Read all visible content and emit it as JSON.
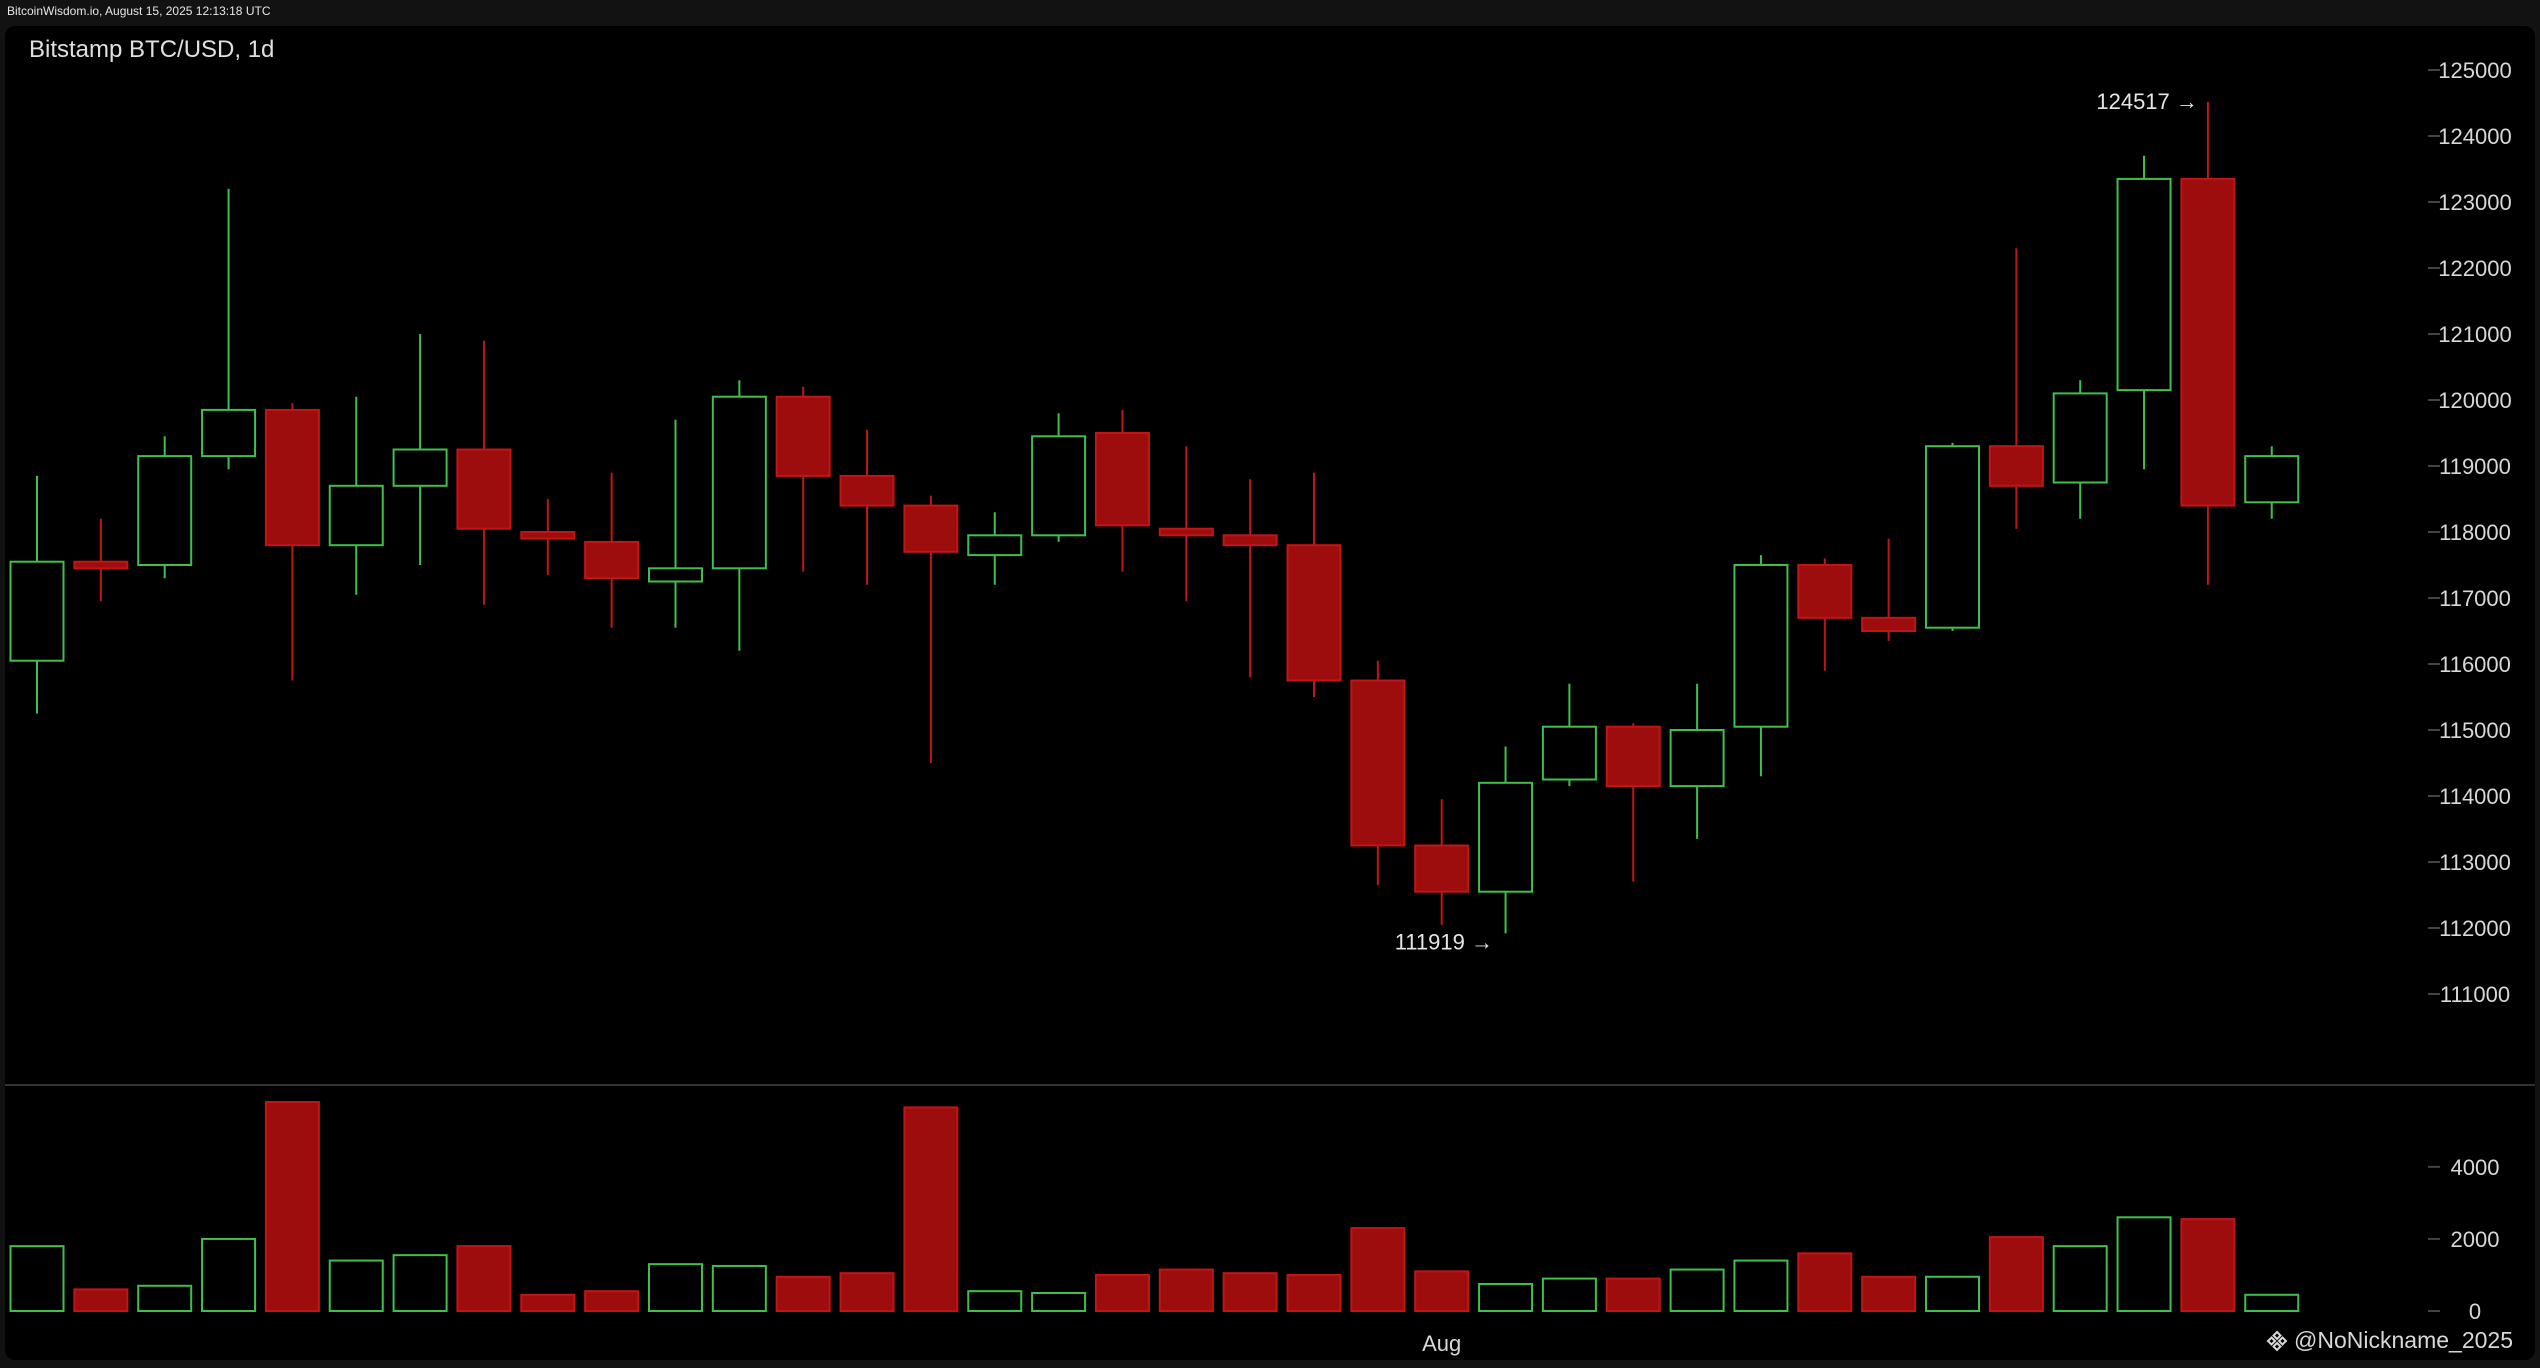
{
  "header": {
    "source_line": "BitcoinWisdom.io, August 15, 2025 12:13:18 UTC",
    "chart_title": "Bitstamp BTC/USD, 1d"
  },
  "watermark": {
    "text": "@NoNickname_2025",
    "icon": "binance-diamond-icon"
  },
  "colors": {
    "background": "#000000",
    "page": "#121212",
    "up": "#3fbf4c",
    "down": "#9e0d0d",
    "down_border": "#c01616",
    "grid_tick": "#444444",
    "separator": "#333333"
  },
  "chart_data": [
    {
      "type": "candlestick",
      "title": "Bitstamp BTC/USD, 1d",
      "ylim": [
        110000,
        125500
      ],
      "yticks": [
        125000,
        124000,
        123000,
        122000,
        121000,
        120000,
        119000,
        118000,
        117000,
        116000,
        115000,
        114000,
        113000,
        112000,
        111000
      ],
      "x_tick_labels": [
        {
          "index": 22,
          "label": "Aug"
        }
      ],
      "annotations": [
        {
          "index": 34,
          "price": 124517,
          "label": "124517 →",
          "position": "left"
        },
        {
          "index": 22,
          "price": 111919,
          "label": "111919 →",
          "position": "below"
        }
      ],
      "candles": [
        {
          "open": 116050,
          "high": 118850,
          "low": 115250,
          "close": 117550
        },
        {
          "open": 117550,
          "high": 118200,
          "low": 116950,
          "close": 117450
        },
        {
          "open": 117500,
          "high": 119450,
          "low": 117300,
          "close": 119150
        },
        {
          "open": 119150,
          "high": 123200,
          "low": 118950,
          "close": 119850
        },
        {
          "open": 119850,
          "high": 119950,
          "low": 115750,
          "close": 117800
        },
        {
          "open": 117800,
          "high": 120050,
          "low": 117050,
          "close": 118700
        },
        {
          "open": 118700,
          "high": 121000,
          "low": 117500,
          "close": 119250
        },
        {
          "open": 119250,
          "high": 120900,
          "low": 116900,
          "close": 118050
        },
        {
          "open": 118000,
          "high": 118500,
          "low": 117350,
          "close": 117900
        },
        {
          "open": 117850,
          "high": 118900,
          "low": 116550,
          "close": 117300
        },
        {
          "open": 117250,
          "high": 119700,
          "low": 116550,
          "close": 117450
        },
        {
          "open": 117450,
          "high": 120300,
          "low": 116200,
          "close": 120050
        },
        {
          "open": 120050,
          "high": 120200,
          "low": 117400,
          "close": 118850
        },
        {
          "open": 118850,
          "high": 119550,
          "low": 117200,
          "close": 118400
        },
        {
          "open": 118400,
          "high": 118550,
          "low": 114500,
          "close": 117700
        },
        {
          "open": 117650,
          "high": 118300,
          "low": 117200,
          "close": 117950
        },
        {
          "open": 117950,
          "high": 119800,
          "low": 117850,
          "close": 119450
        },
        {
          "open": 119500,
          "high": 119850,
          "low": 117400,
          "close": 118100
        },
        {
          "open": 118050,
          "high": 119300,
          "low": 116950,
          "close": 117950
        },
        {
          "open": 117950,
          "high": 118800,
          "low": 115800,
          "close": 117800
        },
        {
          "open": 117800,
          "high": 118900,
          "low": 115500,
          "close": 115750
        },
        {
          "open": 115750,
          "high": 116050,
          "low": 112650,
          "close": 113250
        },
        {
          "open": 113250,
          "high": 113950,
          "low": 112050,
          "close": 112550
        },
        {
          "open": 112550,
          "high": 114750,
          "low": 111919,
          "close": 114200
        },
        {
          "open": 114250,
          "high": 115700,
          "low": 114150,
          "close": 115050
        },
        {
          "open": 115050,
          "high": 115100,
          "low": 112700,
          "close": 114150
        },
        {
          "open": 114150,
          "high": 115700,
          "low": 113350,
          "close": 115000
        },
        {
          "open": 115050,
          "high": 117650,
          "low": 114300,
          "close": 117500
        },
        {
          "open": 117500,
          "high": 117600,
          "low": 115900,
          "close": 116700
        },
        {
          "open": 116700,
          "high": 117900,
          "low": 116350,
          "close": 116500
        },
        {
          "open": 116550,
          "high": 119350,
          "low": 116500,
          "close": 119300
        },
        {
          "open": 119300,
          "high": 122300,
          "low": 118050,
          "close": 118700
        },
        {
          "open": 118750,
          "high": 120300,
          "low": 118200,
          "close": 120100
        },
        {
          "open": 120150,
          "high": 123700,
          "low": 118950,
          "close": 123350
        },
        {
          "open": 123350,
          "high": 124517,
          "low": 117200,
          "close": 118400
        },
        {
          "open": 118450,
          "high": 119300,
          "low": 118200,
          "close": 119150
        }
      ]
    },
    {
      "type": "bar",
      "title": "",
      "ylim": [
        0,
        5800
      ],
      "yticks": [
        4000,
        2000,
        0
      ],
      "values": [
        1800,
        600,
        700,
        2000,
        5800,
        1400,
        1550,
        1800,
        450,
        550,
        1300,
        1250,
        950,
        1050,
        5650,
        550,
        500,
        1000,
        1150,
        1050,
        1000,
        2300,
        1100,
        750,
        900,
        900,
        1150,
        1400,
        1600,
        950,
        950,
        2050,
        1800,
        2600,
        2550,
        450
      ],
      "directions": [
        "up",
        "down",
        "up",
        "up",
        "down",
        "up",
        "up",
        "down",
        "down",
        "down",
        "up",
        "up",
        "down",
        "down",
        "down",
        "up",
        "up",
        "down",
        "down",
        "down",
        "down",
        "down",
        "down",
        "up",
        "up",
        "down",
        "up",
        "up",
        "down",
        "down",
        "up",
        "down",
        "up",
        "up",
        "down",
        "up"
      ]
    }
  ]
}
